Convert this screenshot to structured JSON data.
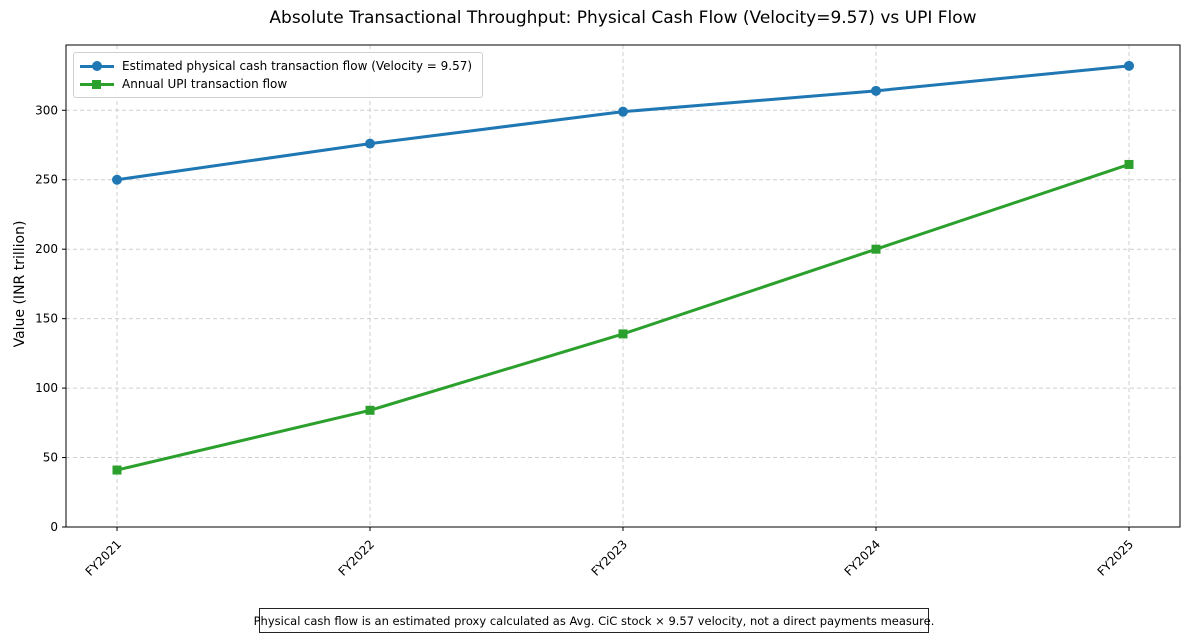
{
  "chart_data": {
    "type": "line",
    "title": "Absolute Transactional Throughput: Physical Cash Flow (Velocity=9.57) vs UPI Flow",
    "xlabel": "",
    "ylabel": "Value (INR trillion)",
    "categories": [
      "FY2021",
      "FY2022",
      "FY2023",
      "FY2024",
      "FY2025"
    ],
    "series": [
      {
        "name": "Estimated physical cash transaction flow (Velocity = 9.57)",
        "values": [
          250,
          276,
          299,
          314,
          332
        ],
        "color": "#1f77b4",
        "marker": "circle"
      },
      {
        "name": "Annual UPI transaction flow",
        "values": [
          41,
          84,
          139,
          200,
          261
        ],
        "color": "#2ca02c",
        "marker": "square"
      }
    ],
    "ylim": [
      0,
      347
    ],
    "yticks": [
      0,
      50,
      100,
      150,
      200,
      250,
      300
    ],
    "grid": true,
    "legend_position": "upper left",
    "annotation": "Physical cash flow is an estimated proxy calculated as Avg. CiC stock × 9.57 velocity, not a direct payments measure."
  },
  "labels": {
    "title": "Absolute Transactional Throughput: Physical Cash Flow (Velocity=9.57) vs UPI Flow",
    "ylabel": "Value (INR trillion)",
    "legend_cash": "Estimated physical cash transaction flow (Velocity = 9.57)",
    "legend_upi": "Annual UPI transaction flow",
    "footnote": "Physical cash flow is an estimated proxy calculated as Avg. CiC stock × 9.57 velocity, not a direct payments measure."
  }
}
